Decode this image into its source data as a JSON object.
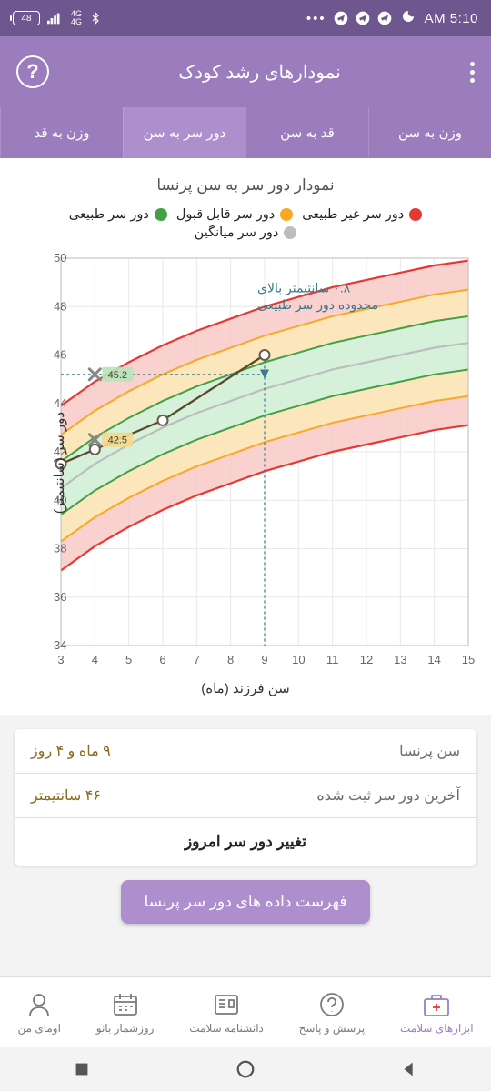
{
  "status": {
    "time": "5:10 AM",
    "battery": "48"
  },
  "appbar": {
    "title": "نمودارهای رشد کودک"
  },
  "tabs": [
    "وزن به سن",
    "قد به سن",
    "دور سر به سن",
    "وزن به قد"
  ],
  "chart": {
    "title": "نمودار دور سر به سن پرنسا",
    "legend": [
      "دور سر غیر طبیعی",
      "دور سر قابل قبول",
      "دور سر طبیعی",
      "دور سر میانگین"
    ],
    "ylabel": "دور سر (سانتیمتر)",
    "xlabel": "سن فرزند (ماه)",
    "x_min": 3,
    "x_max": 15,
    "y_min": 34,
    "y_max": 50,
    "y_ticks": [
      34,
      36,
      38,
      40,
      42,
      44,
      46,
      48,
      50
    ],
    "x_ticks": [
      3,
      4,
      5,
      6,
      7,
      8,
      9,
      10,
      11,
      12,
      13,
      14,
      15
    ],
    "colors": {
      "red": "#e53935",
      "orange": "#f9a825",
      "green": "#43a047",
      "gray": "#bdbdbd",
      "red_fill": "#f8c9c7",
      "orange_fill": "#fbe3b0",
      "green_fill": "#cfeed4",
      "grid": "#e8e8e8",
      "data_line": "#5a4a2a",
      "marker_stroke": "#6a5d4e",
      "annotation": "#3a7a8a"
    },
    "data_points": [
      {
        "x": 3,
        "y": 41.5
      },
      {
        "x": 4,
        "y": 42.1
      },
      {
        "x": 6,
        "y": 43.3
      },
      {
        "x": 9,
        "y": 46.0
      }
    ],
    "markers_x": [
      {
        "x": 4,
        "y": 45.2,
        "label": "45.2"
      },
      {
        "x": 4,
        "y": 42.5,
        "label": "42.5"
      }
    ],
    "annotation": {
      "line1": "۰.۸ سانتیمتر بالای",
      "line2": "محدوده دور سر طبیعی",
      "x": 9,
      "y_from": 46,
      "y_to_text": 48.3
    }
  },
  "info": {
    "row1_label": "سن پرنسا",
    "row1_value": "۹ ماه و ۴ روز",
    "row2_label": "آخرین دور سر ثبت شده",
    "row2_value": "۴۶ سانتیمتر",
    "action": "تغییر دور سر امروز"
  },
  "button": "فهرست داده های دور سر پرنسا",
  "nav": [
    "ابزارهای سلامت",
    "پرسش و پاسخ",
    "دانشنامه سلامت",
    "روزشمار بانو",
    "اومای من"
  ]
}
